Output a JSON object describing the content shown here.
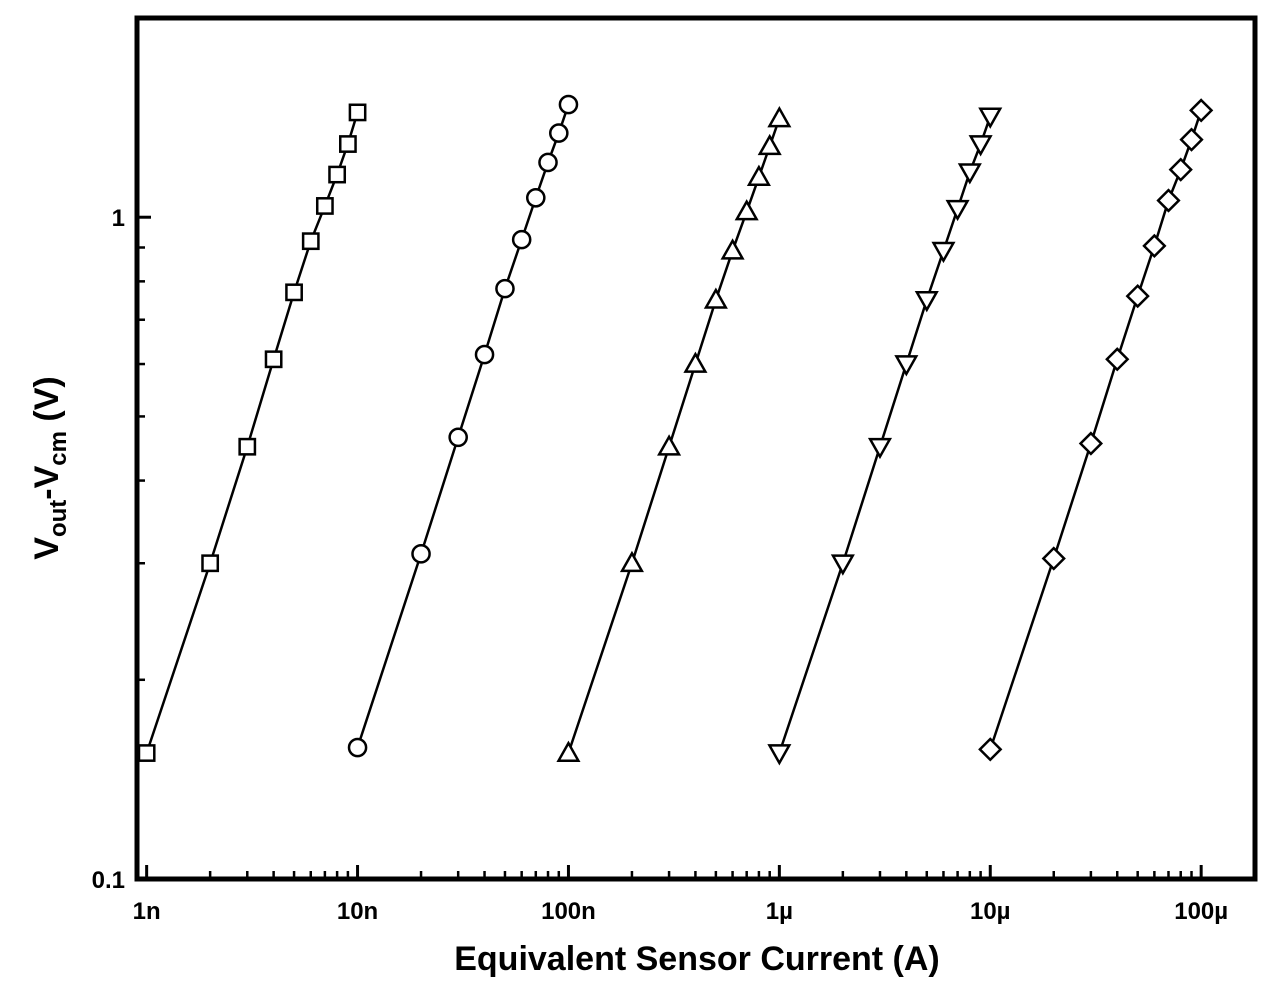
{
  "chart_data": {
    "type": "line",
    "xscale": "log",
    "yscale": "log",
    "xlim": [
      9e-10,
      0.00018
    ],
    "ylim": [
      0.1,
      2.0
    ],
    "grid": false,
    "legend": "none",
    "xlabel": "Equivalent Sensor Current (A)",
    "ylabel": {
      "parts": [
        "V",
        "out",
        "-V",
        "cm",
        " (V)"
      ]
    },
    "x_ticks": [
      {
        "value": 1e-09,
        "label": "1n"
      },
      {
        "value": 1e-08,
        "label": "10n"
      },
      {
        "value": 1e-07,
        "label": "100n"
      },
      {
        "value": 1e-06,
        "label": "1µ"
      },
      {
        "value": 1e-05,
        "label": "10µ"
      },
      {
        "value": 0.0001,
        "label": "100µ"
      }
    ],
    "y_ticks": [
      {
        "value": 0.1,
        "label": "0.1"
      },
      {
        "value": 1,
        "label": "1"
      }
    ],
    "series": [
      {
        "marker": "square",
        "x": [
          1e-09,
          2e-09,
          3e-09,
          4e-09,
          5e-09,
          6e-09,
          7e-09,
          8e-09,
          9e-09,
          1e-08
        ],
        "y": [
          0.155,
          0.3,
          0.45,
          0.61,
          0.77,
          0.92,
          1.04,
          1.16,
          1.29,
          1.44
        ]
      },
      {
        "marker": "circle",
        "x": [
          1e-08,
          2e-08,
          3e-08,
          4e-08,
          5e-08,
          6e-08,
          7e-08,
          8e-08,
          9e-08,
          1e-07
        ],
        "y": [
          0.158,
          0.31,
          0.465,
          0.62,
          0.78,
          0.925,
          1.07,
          1.21,
          1.34,
          1.48
        ]
      },
      {
        "marker": "triangle-up",
        "x": [
          1e-07,
          2e-07,
          3e-07,
          4e-07,
          5e-07,
          6e-07,
          7e-07,
          8e-07,
          9e-07,
          1e-06
        ],
        "y": [
          0.155,
          0.3,
          0.45,
          0.6,
          0.75,
          0.89,
          1.02,
          1.15,
          1.28,
          1.41
        ]
      },
      {
        "marker": "triangle-down",
        "x": [
          1e-06,
          2e-06,
          3e-06,
          4e-06,
          5e-06,
          6e-06,
          7e-06,
          8e-06,
          9e-06,
          1e-05
        ],
        "y": [
          0.155,
          0.3,
          0.45,
          0.6,
          0.75,
          0.89,
          1.03,
          1.17,
          1.29,
          1.42
        ]
      },
      {
        "marker": "diamond",
        "x": [
          1e-05,
          2e-05,
          3e-05,
          4e-05,
          5e-05,
          6e-05,
          7e-05,
          8e-05,
          9e-05,
          0.0001
        ],
        "y": [
          0.157,
          0.305,
          0.455,
          0.61,
          0.76,
          0.905,
          1.06,
          1.18,
          1.31,
          1.45
        ]
      }
    ]
  }
}
